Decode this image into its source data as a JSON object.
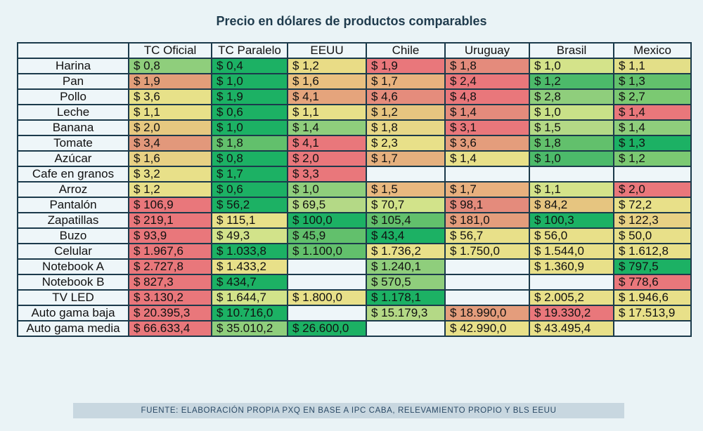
{
  "chart_data": {
    "type": "table",
    "title": "Precio en dólares de productos comparables",
    "source": "FUENTE: ELABORACIÓN PROPIA PXQ EN BASE A IPC CABA, RELEVAMIENTO PROPIO Y BLS EEUU",
    "columns": [
      "TC Oficial",
      "TC Paralelo",
      "EEUU",
      "Chile",
      "Uruguay",
      "Brasil",
      "Mexico"
    ],
    "rows": [
      {
        "product": "Harina",
        "values": [
          "$ 0,8",
          "$ 0,4",
          "$ 1,2",
          "$ 1,9",
          "$ 1,8",
          "$ 1,0",
          "$ 1,1"
        ],
        "colors": [
          "#8fce7c",
          "#1cb164",
          "#e9dc86",
          "#e9777b",
          "#e48b7c",
          "#d4e38a",
          "#e3df88"
        ]
      },
      {
        "product": "Pan",
        "values": [
          "$ 1,9",
          "$ 1,0",
          "$ 1,6",
          "$ 1,7",
          "$ 2,4",
          "$ 1,2",
          "$ 1,3"
        ],
        "colors": [
          "#e29e79",
          "#1cb164",
          "#e9c080",
          "#e8b27e",
          "#e9777b",
          "#4cba6a",
          "#62c06c"
        ]
      },
      {
        "product": "Pollo",
        "values": [
          "$ 3,6",
          "$ 1,9",
          "$ 4,1",
          "$ 4,6",
          "$ 4,8",
          "$ 2,8",
          "$ 2,7"
        ],
        "colors": [
          "#e7e189",
          "#1cb164",
          "#e5a47c",
          "#e58c7c",
          "#e9777b",
          "#8fce7c",
          "#7bc972"
        ]
      },
      {
        "product": "Leche",
        "values": [
          "$ 1,1",
          "$ 0,6",
          "$ 1,1",
          "$ 1,2",
          "$ 1,4",
          "$ 1,0",
          "$ 1,4"
        ],
        "colors": [
          "#e8e089",
          "#1cb164",
          "#e8e089",
          "#e6c580",
          "#e48b7c",
          "#c9e188",
          "#e9777b"
        ]
      },
      {
        "product": "Banana",
        "values": [
          "$ 2,0",
          "$ 1,0",
          "$ 1,4",
          "$ 1,8",
          "$ 3,1",
          "$ 1,5",
          "$ 1,4"
        ],
        "colors": [
          "#e6c880",
          "#1cb164",
          "#8fce7c",
          "#e7d887",
          "#e9777b",
          "#b4d986",
          "#8fce7c"
        ]
      },
      {
        "product": "Tomate",
        "values": [
          "$ 3,4",
          "$ 1,8",
          "$ 4,1",
          "$ 2,3",
          "$ 3,6",
          "$ 1,8",
          "$ 1,3"
        ],
        "colors": [
          "#e2987b",
          "#62c06c",
          "#e9777b",
          "#e8e089",
          "#e49d7c",
          "#62c06c",
          "#1cb164"
        ]
      },
      {
        "product": "Azúcar",
        "values": [
          "$ 1,6",
          "$ 0,8",
          "$ 2,0",
          "$ 1,7",
          "$ 1,4",
          "$ 1,0",
          "$ 1,2"
        ],
        "colors": [
          "#e8d184",
          "#1cb164",
          "#e9777b",
          "#e5b07e",
          "#e8e089",
          "#4cba6a",
          "#7bc972"
        ]
      },
      {
        "product": "Cafe en granos",
        "values": [
          "$ 3,2",
          "$ 1,7",
          "$ 3,3",
          "",
          "",
          "",
          ""
        ],
        "colors": [
          "#e8e089",
          "#1cb164",
          "#e9777b",
          "",
          "",
          "",
          ""
        ]
      },
      {
        "product": "Arroz",
        "values": [
          "$ 1,2",
          "$ 0,6",
          "$ 1,0",
          "$ 1,5",
          "$ 1,7",
          "$ 1,1",
          "$ 2,0"
        ],
        "colors": [
          "#e8e089",
          "#1cb164",
          "#8fce7c",
          "#e8b87f",
          "#e8b07e",
          "#d4e38a",
          "#e9777b"
        ]
      },
      {
        "product": "Pantalón",
        "values": [
          "$ 106,9",
          "$ 56,2",
          "$ 69,5",
          "$ 70,7",
          "$ 98,1",
          "$ 84,2",
          "$ 72,2"
        ],
        "colors": [
          "#e9777b",
          "#1cb164",
          "#b4d986",
          "#d2e38a",
          "#e48b7c",
          "#e6c580",
          "#e8e089"
        ]
      },
      {
        "product": "Zapatillas",
        "values": [
          "$ 219,1",
          "$ 115,1",
          "$ 100,0",
          "$ 105,4",
          "$ 181,0",
          "$ 100,3",
          "$ 122,3"
        ],
        "colors": [
          "#e9777b",
          "#e8e089",
          "#1cb164",
          "#62c06c",
          "#e49d7c",
          "#1cb164",
          "#e8d184"
        ]
      },
      {
        "product": "Buzo",
        "values": [
          "$ 93,9",
          "$ 49,3",
          "$ 45,9",
          "$ 43,4",
          "$ 56,7",
          "$ 56,0",
          "$ 50,0"
        ],
        "colors": [
          "#e9777b",
          "#d2e38a",
          "#62c06c",
          "#1cb164",
          "#e8e089",
          "#e8e089",
          "#e8e089"
        ]
      },
      {
        "product": "Celular",
        "values": [
          "$ 1.967,6",
          "$ 1.033,8",
          "$ 1.100,0",
          "$ 1.736,2",
          "$ 1.750,0",
          "$ 1.544,0",
          "$ 1.612,8"
        ],
        "colors": [
          "#e9777b",
          "#1cb164",
          "#62c06c",
          "#e8e089",
          "#e8e089",
          "#e8e089",
          "#e8e089"
        ]
      },
      {
        "product": "Notebook A",
        "values": [
          "$ 2.727,8",
          "$ 1.433,2",
          "",
          "$ 1.240,1",
          "",
          "$ 1.360,9",
          "$ 797,5"
        ],
        "colors": [
          "#e9777b",
          "#e8e089",
          "",
          "#8fce7c",
          "",
          "#e8e089",
          "#1cb164"
        ]
      },
      {
        "product": "Notebook B",
        "values": [
          "$ 827,3",
          "$ 434,7",
          "",
          "$ 570,5",
          "",
          "",
          "$ 778,6"
        ],
        "colors": [
          "#e9777b",
          "#1cb164",
          "",
          "#8fce7c",
          "",
          "",
          "#e9777b"
        ]
      },
      {
        "product": "TV LED",
        "values": [
          "$ 3.130,2",
          "$ 1.644,7",
          "$ 1.800,0",
          "$ 1.178,1",
          "",
          "$ 2.005,2",
          "$ 1.946,6"
        ],
        "colors": [
          "#e9777b",
          "#d2e38a",
          "#e8e089",
          "#1cb164",
          "",
          "#e8e089",
          "#e8e089"
        ]
      },
      {
        "product": "Auto gama baja",
        "values": [
          "$ 20.395,3",
          "$ 10.716,0",
          "",
          "$ 15.179,3",
          "$ 18.990,0",
          "$ 19.330,2",
          "$ 17.513,9"
        ],
        "colors": [
          "#e9777b",
          "#1cb164",
          "",
          "#b4d986",
          "#e49d7c",
          "#e9777b",
          "#e8e089"
        ]
      },
      {
        "product": "Auto gama media",
        "values": [
          "$ 66.633,4",
          "$ 35.010,2",
          "$ 26.600,0",
          "",
          "$ 42.990,0",
          "$ 43.495,4",
          ""
        ],
        "colors": [
          "#e9777b",
          "#8fce7c",
          "#1cb164",
          "",
          "#e8e089",
          "#e8e089",
          ""
        ]
      }
    ]
  }
}
